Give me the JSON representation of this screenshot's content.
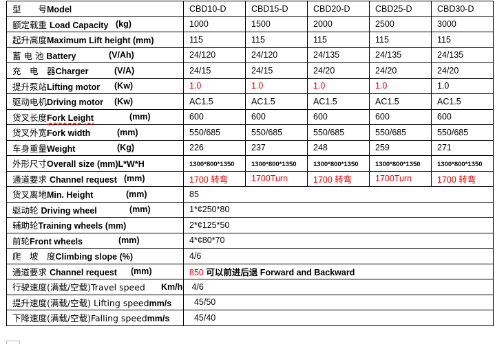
{
  "colors": {
    "highlight": "#e00000",
    "border": "#000000"
  },
  "rows": [
    {
      "cn": "型　　号",
      "en": "Model",
      "unit": "",
      "values": [
        "CBD10-D",
        "CBD15-D",
        "CBD20-D",
        "CBD25-D",
        "CBD30-D"
      ],
      "header": true
    },
    {
      "cn": "额定载重 ",
      "en": "Load Capacity",
      "unit": "(kg)",
      "values": [
        "1000",
        "1500",
        "2000",
        "2500",
        "3000"
      ]
    },
    {
      "cn": "起升高度",
      "en": "Maximum Lift height (mm)",
      "unit": "",
      "values": [
        "115",
        "115",
        "115",
        "115",
        "115"
      ]
    },
    {
      "cn": "蓄 电 池 ",
      "en": "Battery",
      "unit": "(V/Ah)",
      "values": [
        "24/120",
        "24/120",
        "24/135",
        "24/135",
        "24/135"
      ]
    },
    {
      "cn": "充　电　器",
      "en": "Charger",
      "unit": "(V/A)",
      "values": [
        "24/15",
        "24/15",
        "24/20",
        "24/20",
        "24/20"
      ]
    },
    {
      "cn": "提升泵站",
      "en": "Lifting motor",
      "unit": "(Kw)",
      "values": [
        "1.0",
        "1.0",
        "1.0",
        "1.0",
        "1.0"
      ],
      "red": [
        true,
        true,
        true,
        true,
        false
      ]
    },
    {
      "cn": "驱动电机",
      "en": "Driving motor",
      "unit": "(Kw)",
      "values": [
        "AC1.5",
        "AC1.5",
        "AC1.5",
        "AC1.5",
        "AC1.5"
      ]
    },
    {
      "cn": "货叉长度",
      "en": "Fork Leight",
      "unit": "(mm)",
      "values": [
        "600",
        "600",
        "600",
        "600",
        "600"
      ],
      "spellcheck": true
    },
    {
      "cn": "货叉外宽",
      "en": "Fork width",
      "unit": "(mm)",
      "values": [
        "550/685",
        "550/685",
        "550/685",
        "550/685",
        "550/685"
      ]
    },
    {
      "cn": "车身重量",
      "en": "Weight",
      "unit": "(Kg)",
      "values": [
        "226",
        "237",
        "248",
        "259",
        "271"
      ]
    },
    {
      "cn": "外形尺寸",
      "en": "Overall size (mm)L*W*H",
      "unit": "",
      "values": [
        "1300*800*1350",
        "1300*800*1350",
        "1300*800*1350",
        "1300*800*1350",
        "1300*800*1350"
      ],
      "small": true
    },
    {
      "cn": "通道要求 ",
      "en": "Channel request",
      "unit": "(mm)",
      "values": [
        "1700 转弯",
        "1700Turn",
        "1700 转弯",
        "1700Turn",
        "1700 转弯"
      ],
      "red": [
        true,
        true,
        true,
        true,
        true
      ]
    },
    {
      "cn": "货叉离地",
      "en": "Min. Height",
      "unit": "(mm)",
      "merged": "85"
    },
    {
      "cn": "驱动轮 ",
      "en": "Driving wheel",
      "unit": "(mm)",
      "merged": "1*¢250*80"
    },
    {
      "cn": "辅助轮",
      "en": "Training wheels (mm)",
      "unit": "",
      "merged": "2*¢125*50"
    },
    {
      "cn": "前轮",
      "en": "Front wheels",
      "unit": "(mm)",
      "merged": "4*¢80*70"
    },
    {
      "cn": "爬　坡　度",
      "en": "Climbing slope (%)",
      "unit": "",
      "merged": "4/6"
    },
    {
      "cn": "通道要求 ",
      "en": "Channel request",
      "unit": "(mm)",
      "merged_red": "850",
      "merged": " 可以前进后退 Forward and Backward"
    },
    {
      "cn": "行驶速度(满载/空载)Travel speed",
      "en": "",
      "unit": "Km/h",
      "merged": " 4/6",
      "plain": true
    },
    {
      "cn": "提升速度(满载/空载) Lifting speed",
      "en": "mm/s",
      "unit": "",
      "merged": "  45/50",
      "plain": true
    },
    {
      "cn": "下降速度(满载/空载)Falling speed",
      "en": "mm/s",
      "unit": "",
      "merged": "  45/40",
      "plain": true
    }
  ]
}
